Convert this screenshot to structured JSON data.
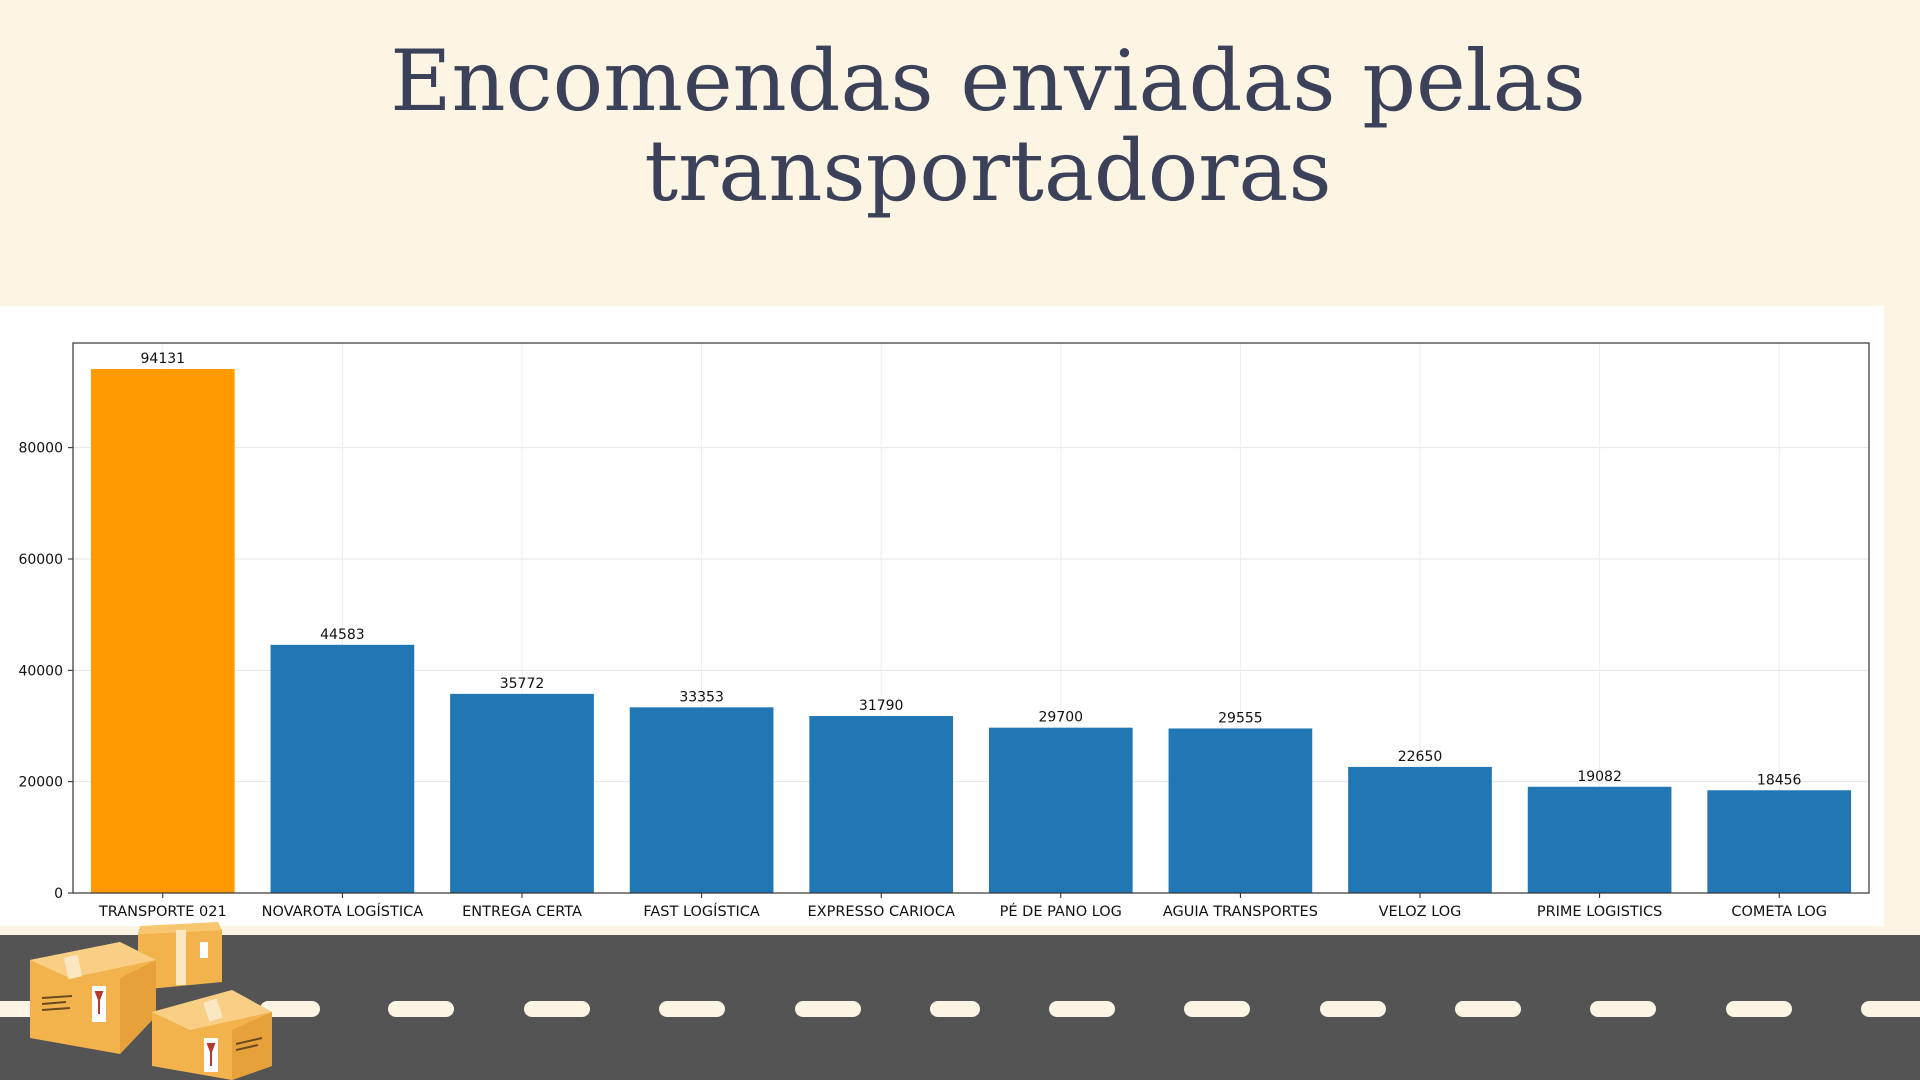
{
  "page": {
    "title_line1": "Encomendas enviadas pelas",
    "title_line2": "transportadoras"
  },
  "chart_data": {
    "type": "bar",
    "categories": [
      "TRANSPORTE 021",
      "NOVAROTA LOGÍSTICA",
      "ENTREGA CERTA",
      "FAST LOGÍSTICA",
      "EXPRESSO CARIOCA",
      "PÉ DE PANO LOG",
      "AGUIA TRANSPORTES",
      "VELOZ LOG",
      "PRIME LOGISTICS",
      "COMETA LOG"
    ],
    "values": [
      94131,
      44583,
      35772,
      33353,
      31790,
      29700,
      29555,
      22650,
      19082,
      18456
    ],
    "title": "",
    "xlabel": "",
    "ylabel": "",
    "ylim": [
      0,
      98800
    ],
    "yticks": [
      0,
      20000,
      40000,
      60000,
      80000
    ],
    "grid": true,
    "highlight_index": 0,
    "colors": {
      "default": "#2077B4",
      "highlight": "#FF9A00"
    }
  },
  "decor": {
    "background": "#FDF5E4",
    "road_color": "#545454",
    "road_stripe_color": "#FDF5E4",
    "box_color": "#F5B54E",
    "icons": [
      "road",
      "cardboard-boxes-icon"
    ]
  }
}
